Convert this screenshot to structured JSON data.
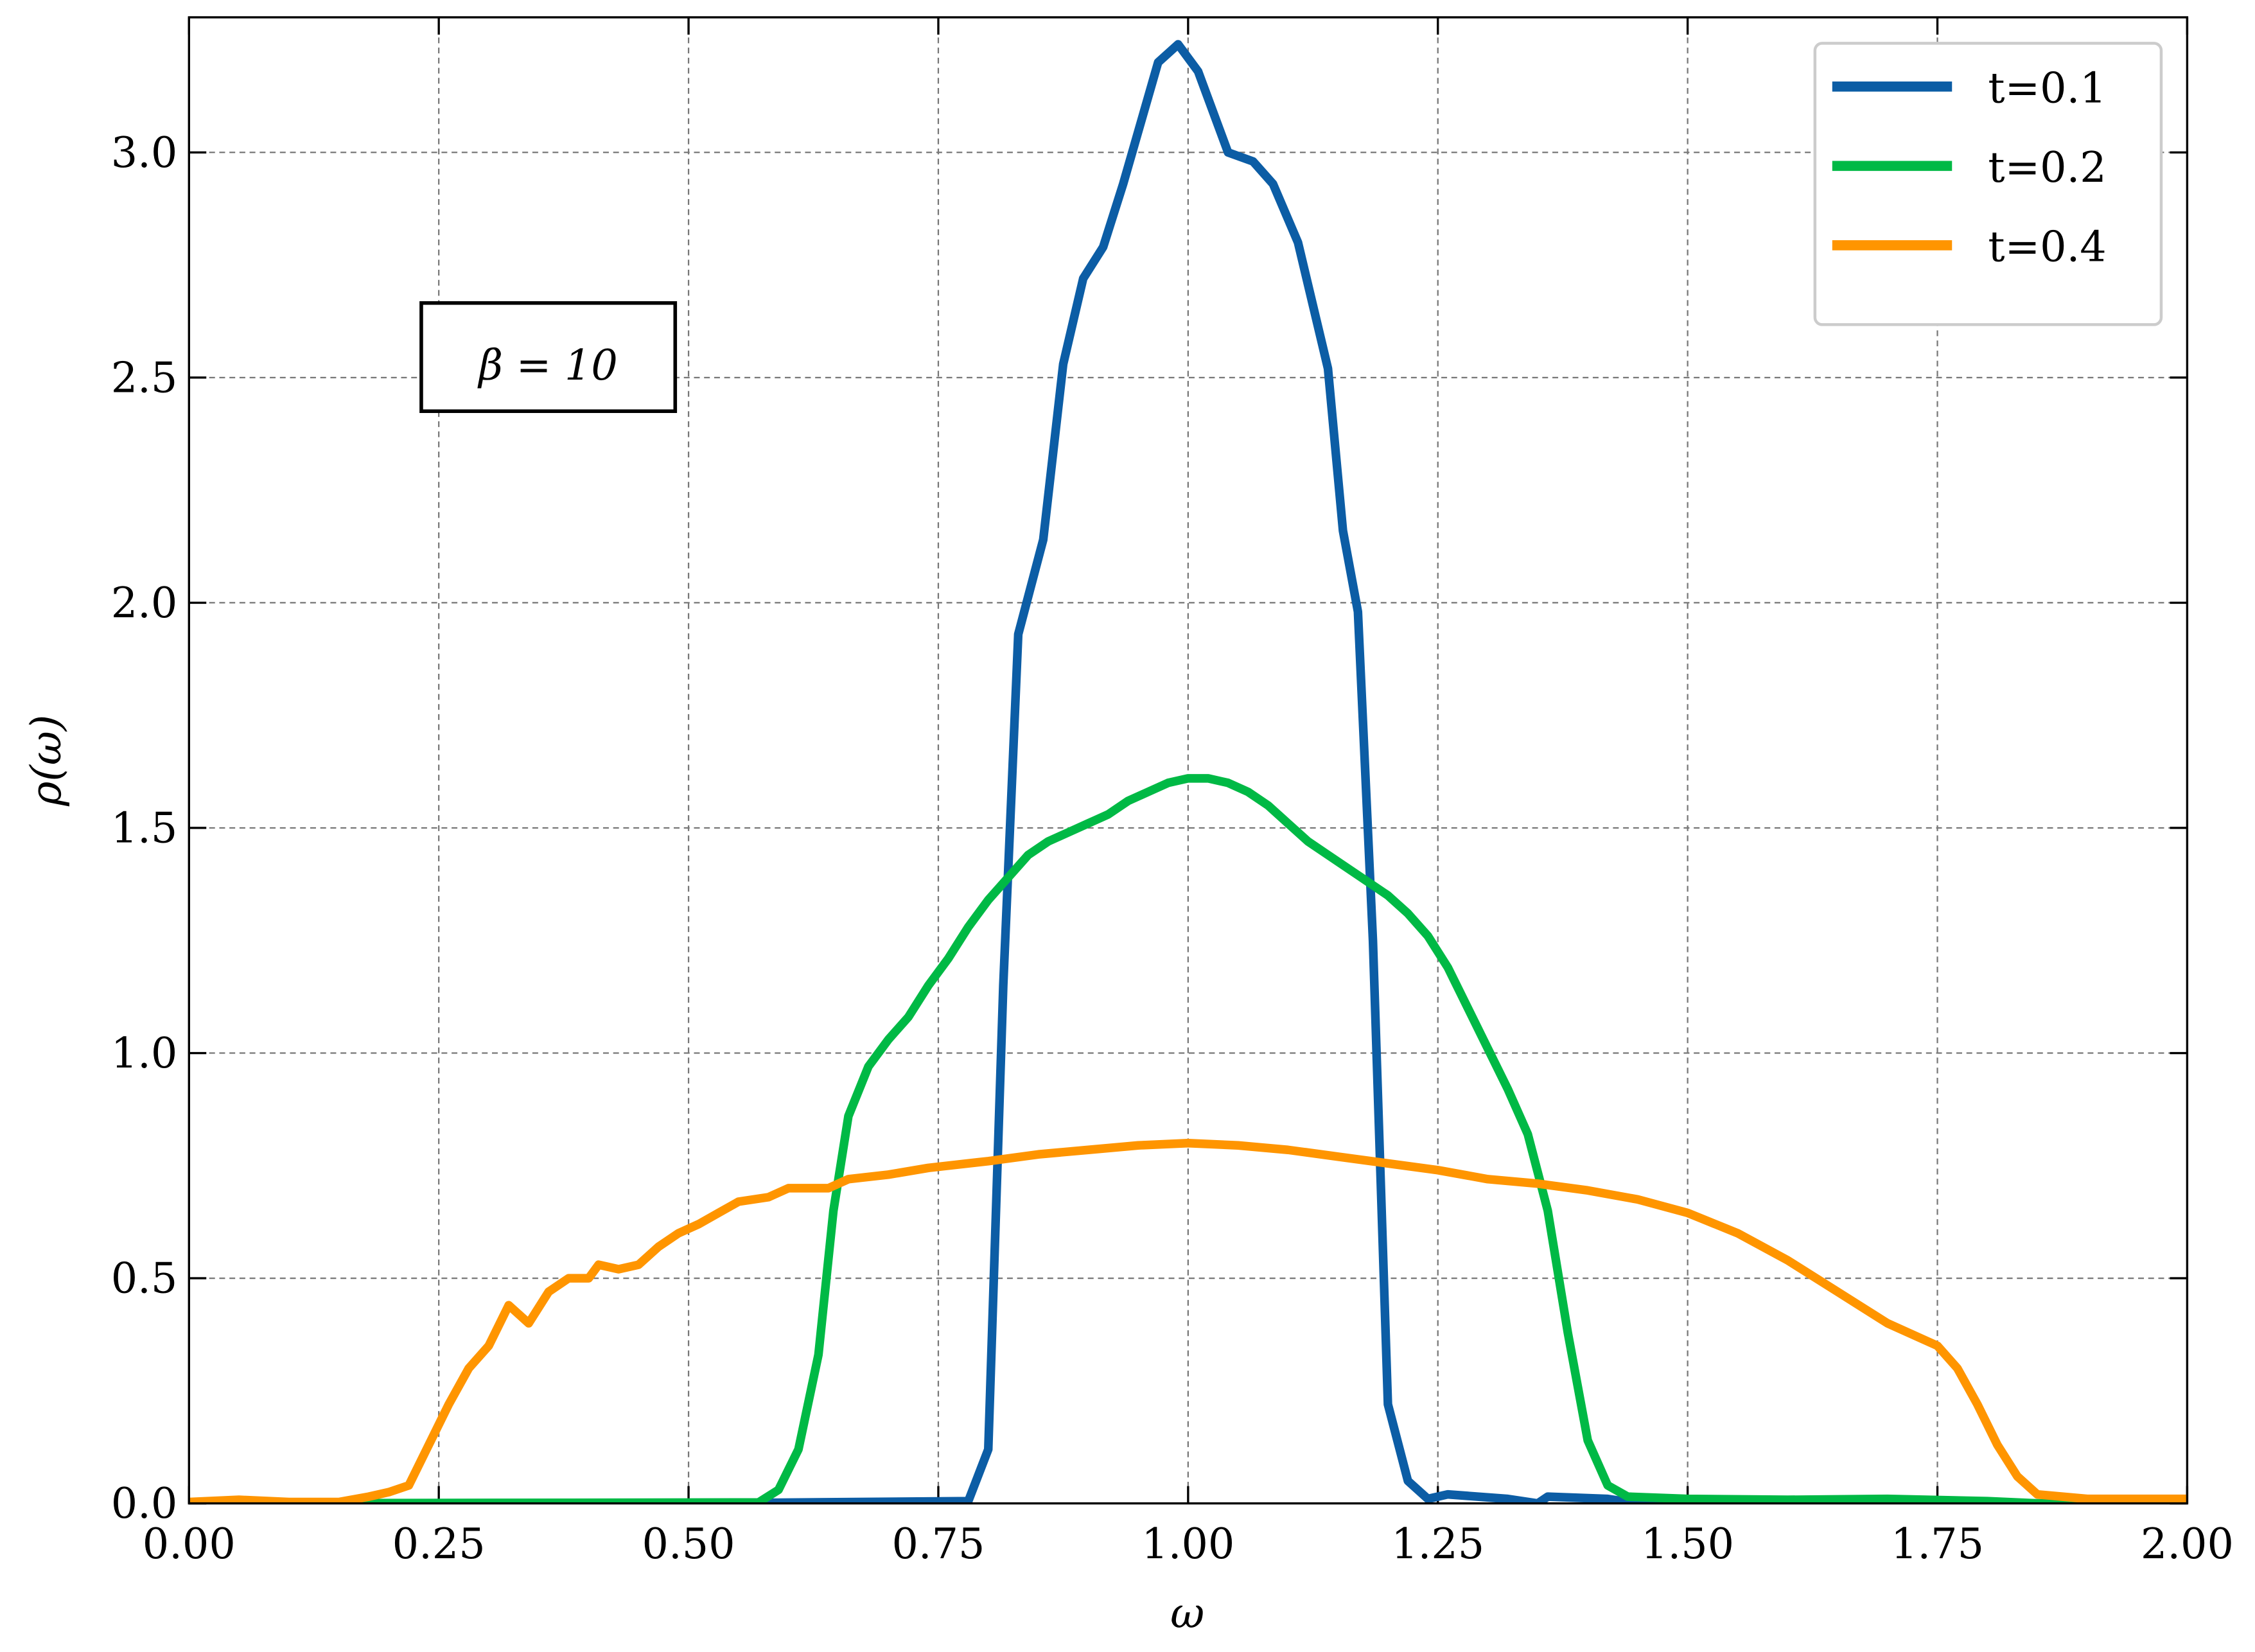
{
  "chart_data": {
    "type": "line",
    "xlabel": "ω",
    "ylabel": "ρ(ω)",
    "annotation": "β = 10",
    "xlim": [
      0,
      2
    ],
    "ylim": [
      0,
      3.3
    ],
    "xticks": [
      {
        "value": 0,
        "label": "0.00"
      },
      0.25,
      {
        "value": 0.5,
        "label": "0.50"
      },
      0.75,
      {
        "value": 1,
        "label": "1.00"
      },
      1.25,
      {
        "value": 1.5,
        "label": "1.50"
      },
      1.75,
      {
        "value": 2,
        "label": "2.00"
      }
    ],
    "yticks": [
      {
        "value": 0,
        "label": "0.0"
      },
      0.5,
      {
        "value": 1,
        "label": "1.0"
      },
      1.5,
      {
        "value": 2,
        "label": "2.0"
      },
      2.5,
      {
        "value": 3,
        "label": "3.0"
      }
    ],
    "grid": true,
    "legend": "upper right",
    "series": [
      {
        "name": "t=0.1",
        "color": "#0c5da5",
        "x": [
          0,
          0.5,
          0.78,
          0.8,
          0.815,
          0.83,
          0.855,
          0.875,
          0.895,
          0.915,
          0.935,
          0.97,
          0.99,
          1.01,
          1.04,
          1.065,
          1.085,
          1.11,
          1.14,
          1.155,
          1.17,
          1.185,
          1.2,
          1.22,
          1.24,
          1.26,
          1.32,
          1.35,
          1.36,
          1.42,
          1.45,
          2
        ],
        "values": [
          0,
          0,
          0.005,
          0.12,
          1.15,
          1.93,
          2.14,
          2.53,
          2.72,
          2.79,
          2.93,
          3.2,
          3.24,
          3.18,
          3.0,
          2.98,
          2.93,
          2.8,
          2.52,
          2.16,
          1.98,
          1.25,
          0.22,
          0.05,
          0.01,
          0.02,
          0.01,
          0,
          0.015,
          0.01,
          0,
          0
        ]
      },
      {
        "name": "t=0.2",
        "color": "#00b945",
        "x": [
          0,
          0.57,
          0.59,
          0.61,
          0.63,
          0.645,
          0.66,
          0.68,
          0.7,
          0.72,
          0.74,
          0.76,
          0.78,
          0.8,
          0.82,
          0.84,
          0.86,
          0.88,
          0.9,
          0.92,
          0.94,
          0.96,
          0.98,
          1.0,
          1.02,
          1.04,
          1.06,
          1.08,
          1.1,
          1.12,
          1.14,
          1.16,
          1.18,
          1.2,
          1.22,
          1.24,
          1.26,
          1.28,
          1.3,
          1.32,
          1.34,
          1.36,
          1.38,
          1.4,
          1.42,
          1.44,
          1.5,
          1.6,
          1.7,
          1.8,
          1.85,
          2
        ],
        "values": [
          0,
          0.002,
          0.03,
          0.12,
          0.33,
          0.65,
          0.86,
          0.97,
          1.03,
          1.08,
          1.15,
          1.21,
          1.28,
          1.34,
          1.39,
          1.44,
          1.47,
          1.49,
          1.51,
          1.53,
          1.56,
          1.58,
          1.6,
          1.61,
          1.61,
          1.6,
          1.58,
          1.55,
          1.51,
          1.47,
          1.44,
          1.41,
          1.38,
          1.35,
          1.31,
          1.26,
          1.19,
          1.1,
          1.01,
          0.92,
          0.82,
          0.65,
          0.38,
          0.14,
          0.04,
          0.015,
          0.01,
          0.008,
          0.01,
          0.005,
          0,
          0
        ]
      },
      {
        "name": "t=0.4",
        "color": "#ff9500",
        "x": [
          0,
          0.05,
          0.1,
          0.15,
          0.18,
          0.2,
          0.22,
          0.24,
          0.26,
          0.28,
          0.3,
          0.32,
          0.34,
          0.36,
          0.38,
          0.4,
          0.41,
          0.43,
          0.45,
          0.47,
          0.49,
          0.51,
          0.53,
          0.55,
          0.58,
          0.6,
          0.64,
          0.66,
          0.7,
          0.74,
          0.8,
          0.85,
          0.9,
          0.95,
          1.0,
          1.05,
          1.1,
          1.15,
          1.2,
          1.25,
          1.3,
          1.35,
          1.4,
          1.45,
          1.5,
          1.55,
          1.6,
          1.65,
          1.7,
          1.75,
          1.77,
          1.79,
          1.81,
          1.83,
          1.85,
          1.9,
          2
        ],
        "values": [
          0.003,
          0.008,
          0.003,
          0.003,
          0.015,
          0.025,
          0.04,
          0.13,
          0.22,
          0.3,
          0.35,
          0.44,
          0.4,
          0.47,
          0.5,
          0.5,
          0.53,
          0.52,
          0.53,
          0.57,
          0.6,
          0.62,
          0.645,
          0.67,
          0.68,
          0.7,
          0.7,
          0.72,
          0.73,
          0.745,
          0.76,
          0.775,
          0.785,
          0.795,
          0.8,
          0.795,
          0.785,
          0.77,
          0.755,
          0.74,
          0.72,
          0.71,
          0.695,
          0.675,
          0.645,
          0.6,
          0.54,
          0.47,
          0.4,
          0.35,
          0.3,
          0.22,
          0.13,
          0.06,
          0.02,
          0.01,
          0.01
        ]
      }
    ]
  }
}
